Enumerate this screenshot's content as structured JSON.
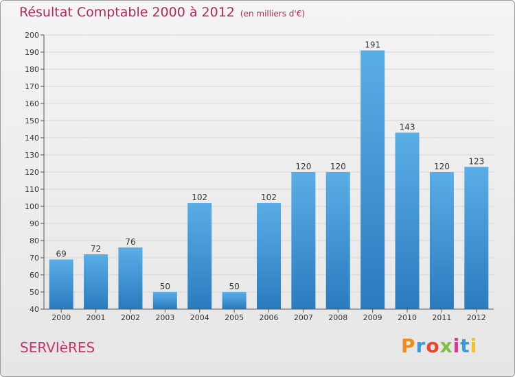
{
  "header": {
    "title": "Résultat Comptable 2000 à 2012",
    "subtitle": "(en milliers d'€)"
  },
  "footer": {
    "commune": "SERVIèRES",
    "logo_text": "Proxiti",
    "logo_colors": [
      "#f08a1c",
      "#3a9ad9",
      "#e8452a",
      "#7cc242",
      "#d9368f",
      "#3a9ad9",
      "#f4c21b"
    ]
  },
  "colors": {
    "bar_top": "#5aaee6",
    "bar_bottom": "#2a7bbf",
    "title": "#b0295a",
    "grid": "#d7d7d7"
  },
  "chart_data": {
    "type": "bar",
    "title": "Résultat Comptable 2000 à 2012",
    "subtitle": "(en milliers d'€)",
    "xlabel": "",
    "ylabel": "",
    "categories": [
      "2000",
      "2001",
      "2002",
      "2003",
      "2004",
      "2005",
      "2006",
      "2007",
      "2008",
      "2009",
      "2010",
      "2011",
      "2012"
    ],
    "values": [
      69,
      72,
      76,
      50,
      102,
      50,
      102,
      120,
      120,
      191,
      143,
      120,
      123
    ],
    "ylim": [
      40,
      200
    ],
    "yticks": [
      40,
      50,
      60,
      70,
      80,
      90,
      100,
      110,
      120,
      130,
      140,
      150,
      160,
      170,
      180,
      190,
      200
    ],
    "grid": true,
    "data_labels": true
  }
}
